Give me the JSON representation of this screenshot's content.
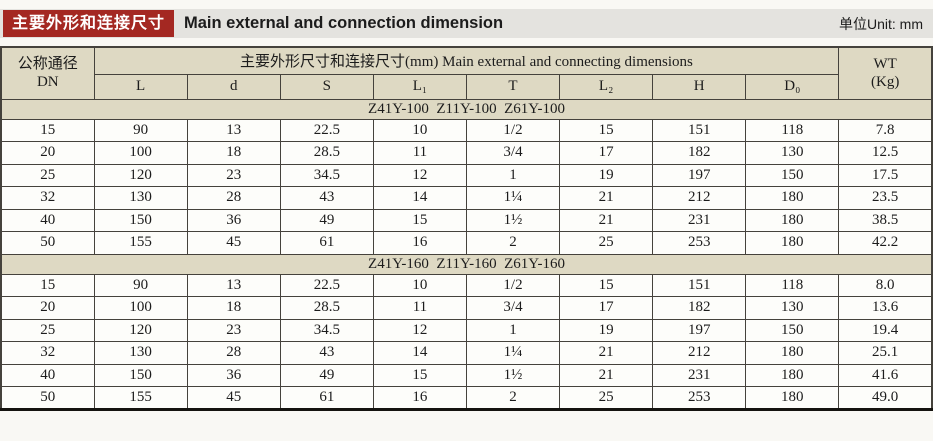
{
  "header": {
    "cn_label": "主要外形和连接尺寸",
    "title": "Main external and connection dimension",
    "unit": "单位Unit: mm"
  },
  "colors": {
    "accent_red": "#a42822",
    "bar_gray": "#e4e3df",
    "header_beige": "#ded9c3",
    "border": "#45423c"
  },
  "table": {
    "col_dn_line1": "公称通径",
    "col_dn_line2": "DN",
    "span_header": "主要外形尺寸和连接尺寸(mm) Main external and connecting dimensions",
    "col_wt_line1": "WT",
    "col_wt_line2": "(Kg)",
    "sub_headers": [
      "L",
      "d",
      "S",
      "L₁",
      "T",
      "L₂",
      "H",
      "D₀"
    ],
    "sections": [
      {
        "title": "Z41Y-100  Z11Y-100  Z61Y-100",
        "rows": [
          [
            "15",
            "90",
            "13",
            "22.5",
            "10",
            "1/2",
            "15",
            "151",
            "118",
            "7.8"
          ],
          [
            "20",
            "100",
            "18",
            "28.5",
            "11",
            "3/4",
            "17",
            "182",
            "130",
            "12.5"
          ],
          [
            "25",
            "120",
            "23",
            "34.5",
            "12",
            "1",
            "19",
            "197",
            "150",
            "17.5"
          ],
          [
            "32",
            "130",
            "28",
            "43",
            "14",
            "1¼",
            "21",
            "212",
            "180",
            "23.5"
          ],
          [
            "40",
            "150",
            "36",
            "49",
            "15",
            "1½",
            "21",
            "231",
            "180",
            "38.5"
          ],
          [
            "50",
            "155",
            "45",
            "61",
            "16",
            "2",
            "25",
            "253",
            "180",
            "42.2"
          ]
        ]
      },
      {
        "title": "Z41Y-160  Z11Y-160  Z61Y-160",
        "rows": [
          [
            "15",
            "90",
            "13",
            "22.5",
            "10",
            "1/2",
            "15",
            "151",
            "118",
            "8.0"
          ],
          [
            "20",
            "100",
            "18",
            "28.5",
            "11",
            "3/4",
            "17",
            "182",
            "130",
            "13.6"
          ],
          [
            "25",
            "120",
            "23",
            "34.5",
            "12",
            "1",
            "19",
            "197",
            "150",
            "19.4"
          ],
          [
            "32",
            "130",
            "28",
            "43",
            "14",
            "1¼",
            "21",
            "212",
            "180",
            "25.1"
          ],
          [
            "40",
            "150",
            "36",
            "49",
            "15",
            "1½",
            "21",
            "231",
            "180",
            "41.6"
          ],
          [
            "50",
            "155",
            "45",
            "61",
            "16",
            "2",
            "25",
            "253",
            "180",
            "49.0"
          ]
        ]
      }
    ]
  }
}
